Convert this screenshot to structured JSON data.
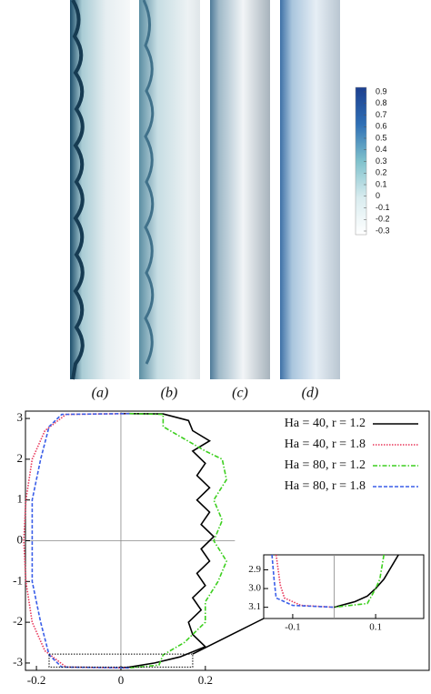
{
  "panels": {
    "labels": [
      "(a)",
      "(b)",
      "(c)",
      "(d)"
    ]
  },
  "colorbar": {
    "ticks": [
      0.9,
      0.8,
      0.7,
      0.6,
      0.5,
      0.4,
      0.3,
      0.2,
      0.1,
      0,
      -0.1,
      -0.2,
      -0.3
    ],
    "colors": [
      "#ffffff",
      "#d9ecef",
      "#7fc1cc",
      "#2f6fb5",
      "#1c3f8f"
    ]
  },
  "chart_data": [
    {
      "type": "line",
      "legend": "upper right",
      "xlim": [
        -0.226,
        0.73
      ],
      "ylim": [
        -3.18,
        3.18
      ],
      "xticks": [
        -0.2,
        0,
        0.2
      ],
      "yticks": [
        -3,
        -2,
        -1,
        0,
        1,
        2,
        3
      ],
      "series": [
        {
          "name": "Ha = 40,  r = 1.2",
          "color": "#000000",
          "style": "solid",
          "x": [
            0.0,
            0.1,
            0.16,
            0.17,
            0.21,
            0.17,
            0.2,
            0.18,
            0.21,
            0.18,
            0.21,
            0.19,
            0.22,
            0.19,
            0.21,
            0.18,
            0.2,
            0.17,
            0.19,
            0.16,
            0.17,
            0.2,
            0.14,
            0.08,
            0.02,
            0.0
          ],
          "values": [
            3.12,
            3.11,
            2.95,
            2.7,
            2.45,
            2.2,
            1.9,
            1.6,
            1.3,
            1.0,
            0.7,
            0.4,
            0.1,
            -0.2,
            -0.5,
            -0.8,
            -1.1,
            -1.4,
            -1.7,
            -2.0,
            -2.3,
            -2.6,
            -2.85,
            -3.0,
            -3.1,
            -3.12
          ]
        },
        {
          "name": "Ha = 40,  r = 1.8",
          "color": "#e8375a",
          "style": "dotted",
          "x": [
            0.02,
            -0.13,
            -0.18,
            -0.21,
            -0.225,
            -0.23,
            -0.225,
            -0.21,
            -0.18,
            -0.13,
            0.02
          ],
          "values": [
            3.12,
            3.1,
            2.7,
            2.0,
            1.0,
            0,
            -1.0,
            -2.0,
            -2.7,
            -3.1,
            -3.12
          ]
        },
        {
          "name": "Ha = 80,  r = 1.2",
          "color": "#3ccf1e",
          "style": "dashdot",
          "x": [
            0.02,
            0.1,
            0.1,
            0.15,
            0.2,
            0.24,
            0.25,
            0.22,
            0.24,
            0.22,
            0.25,
            0.23,
            0.2,
            0.2,
            0.15,
            0.1,
            0.09,
            0.02
          ],
          "values": [
            3.12,
            3.1,
            2.8,
            2.5,
            2.2,
            2.0,
            1.5,
            1.0,
            0.5,
            0,
            -0.5,
            -1.0,
            -1.5,
            -2.0,
            -2.5,
            -2.8,
            -3.05,
            -3.12
          ]
        },
        {
          "name": "Ha = 80,  r = 1.8",
          "color": "#3a5ee8",
          "style": "dashed",
          "x": [
            0.02,
            -0.14,
            -0.17,
            -0.19,
            -0.21,
            -0.21,
            -0.21,
            -0.19,
            -0.17,
            -0.14,
            0.02
          ],
          "values": [
            3.12,
            3.1,
            2.8,
            2.0,
            1.0,
            0,
            -1.0,
            -2.0,
            -2.8,
            -3.1,
            -3.12
          ]
        }
      ]
    },
    {
      "type": "line",
      "xlim": [
        -0.17,
        0.216
      ],
      "ylim": [
        3.16,
        2.82
      ],
      "xticks": [
        -0.1,
        0.1
      ],
      "yticks": [
        2.9,
        {
          "value": 3,
          "label": "3.0"
        },
        3.1
      ],
      "series": [
        {
          "color": "#000000",
          "style": "solid",
          "x": [
            0.155,
            0.12,
            0.1,
            0.08,
            0.05,
            0.0
          ],
          "values": [
            2.82,
            2.95,
            3.0,
            3.04,
            3.07,
            3.1
          ]
        },
        {
          "color": "#e8375a",
          "style": "dotted",
          "x": [
            -0.14,
            -0.13,
            -0.12,
            -0.08,
            0.0
          ],
          "values": [
            2.82,
            2.98,
            3.05,
            3.09,
            3.1
          ]
        },
        {
          "color": "#3ccf1e",
          "style": "dashdot",
          "x": [
            0.12,
            0.11,
            0.1,
            0.08,
            0.0
          ],
          "values": [
            2.82,
            2.95,
            3.0,
            3.08,
            3.1
          ]
        },
        {
          "color": "#3a5ee8",
          "style": "dashed",
          "x": [
            -0.15,
            -0.145,
            -0.14,
            -0.1,
            0.0
          ],
          "values": [
            2.82,
            2.95,
            3.05,
            3.09,
            3.1
          ]
        }
      ]
    }
  ]
}
